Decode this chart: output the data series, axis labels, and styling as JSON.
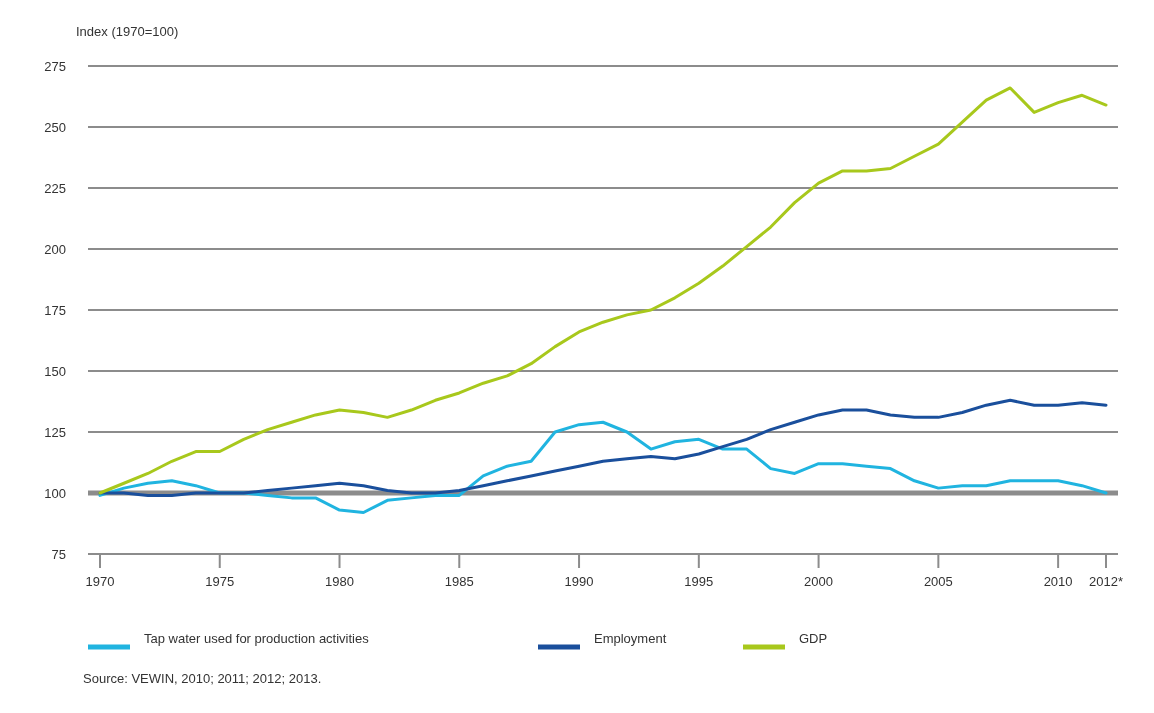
{
  "chart_data": {
    "type": "line",
    "ylabel": "Index (1970=100)",
    "x": [
      1970,
      1971,
      1972,
      1973,
      1974,
      1975,
      1976,
      1977,
      1978,
      1979,
      1980,
      1981,
      1982,
      1983,
      1984,
      1985,
      1986,
      1987,
      1988,
      1989,
      1990,
      1991,
      1992,
      1993,
      1994,
      1995,
      1996,
      1997,
      1998,
      1999,
      2000,
      2001,
      2002,
      2003,
      2004,
      2005,
      2006,
      2007,
      2008,
      2009,
      2010,
      2011,
      2012
    ],
    "series": [
      {
        "name": "Tap water used for production activities",
        "color": "#20b4e0",
        "values": [
          99,
          102,
          104,
          105,
          103,
          100,
          100,
          99,
          98,
          98,
          93,
          92,
          97,
          98,
          99,
          99,
          107,
          111,
          113,
          125,
          128,
          129,
          125,
          118,
          121,
          122,
          118,
          118,
          110,
          108,
          112,
          112,
          111,
          110,
          105,
          102,
          103,
          103,
          105,
          105,
          105,
          103,
          100
        ]
      },
      {
        "name": "Employment",
        "color": "#1a4f9c",
        "values": [
          100,
          100,
          99,
          99,
          100,
          100,
          100,
          101,
          102,
          103,
          104,
          103,
          101,
          100,
          100,
          101,
          103,
          105,
          107,
          109,
          111,
          113,
          114,
          115,
          114,
          116,
          119,
          122,
          126,
          129,
          132,
          134,
          134,
          132,
          131,
          131,
          133,
          136,
          138,
          136,
          136,
          137,
          136
        ]
      },
      {
        "name": "GDP",
        "color": "#a8c81c",
        "values": [
          100,
          104,
          108,
          113,
          117,
          117,
          122,
          126,
          129,
          132,
          134,
          133,
          131,
          134,
          138,
          141,
          145,
          148,
          153,
          160,
          166,
          170,
          173,
          175,
          180,
          186,
          193,
          201,
          209,
          219,
          227,
          232,
          232,
          233,
          238,
          243,
          252,
          261,
          266,
          256,
          260,
          263,
          259
        ]
      }
    ],
    "xlim": [
      1969.5,
      2012.5
    ],
    "xticks": [
      1970,
      1975,
      1980,
      1985,
      1990,
      1995,
      2000,
      2005,
      2010,
      {
        "value": 2012,
        "label": "2012*"
      }
    ],
    "ylim": [
      75,
      275
    ],
    "yticks": [
      75,
      100,
      125,
      150,
      175,
      200,
      225,
      250,
      275
    ],
    "grid": "y",
    "legend": "bottom",
    "line_style": "solid",
    "marker": "none",
    "ref_lines": [
      {
        "axis": "y",
        "value": 100,
        "color": "#8c8c8c"
      }
    ],
    "annotations": [
      "Source: VEWIN, 2010; 2011; 2012; 2013."
    ]
  }
}
